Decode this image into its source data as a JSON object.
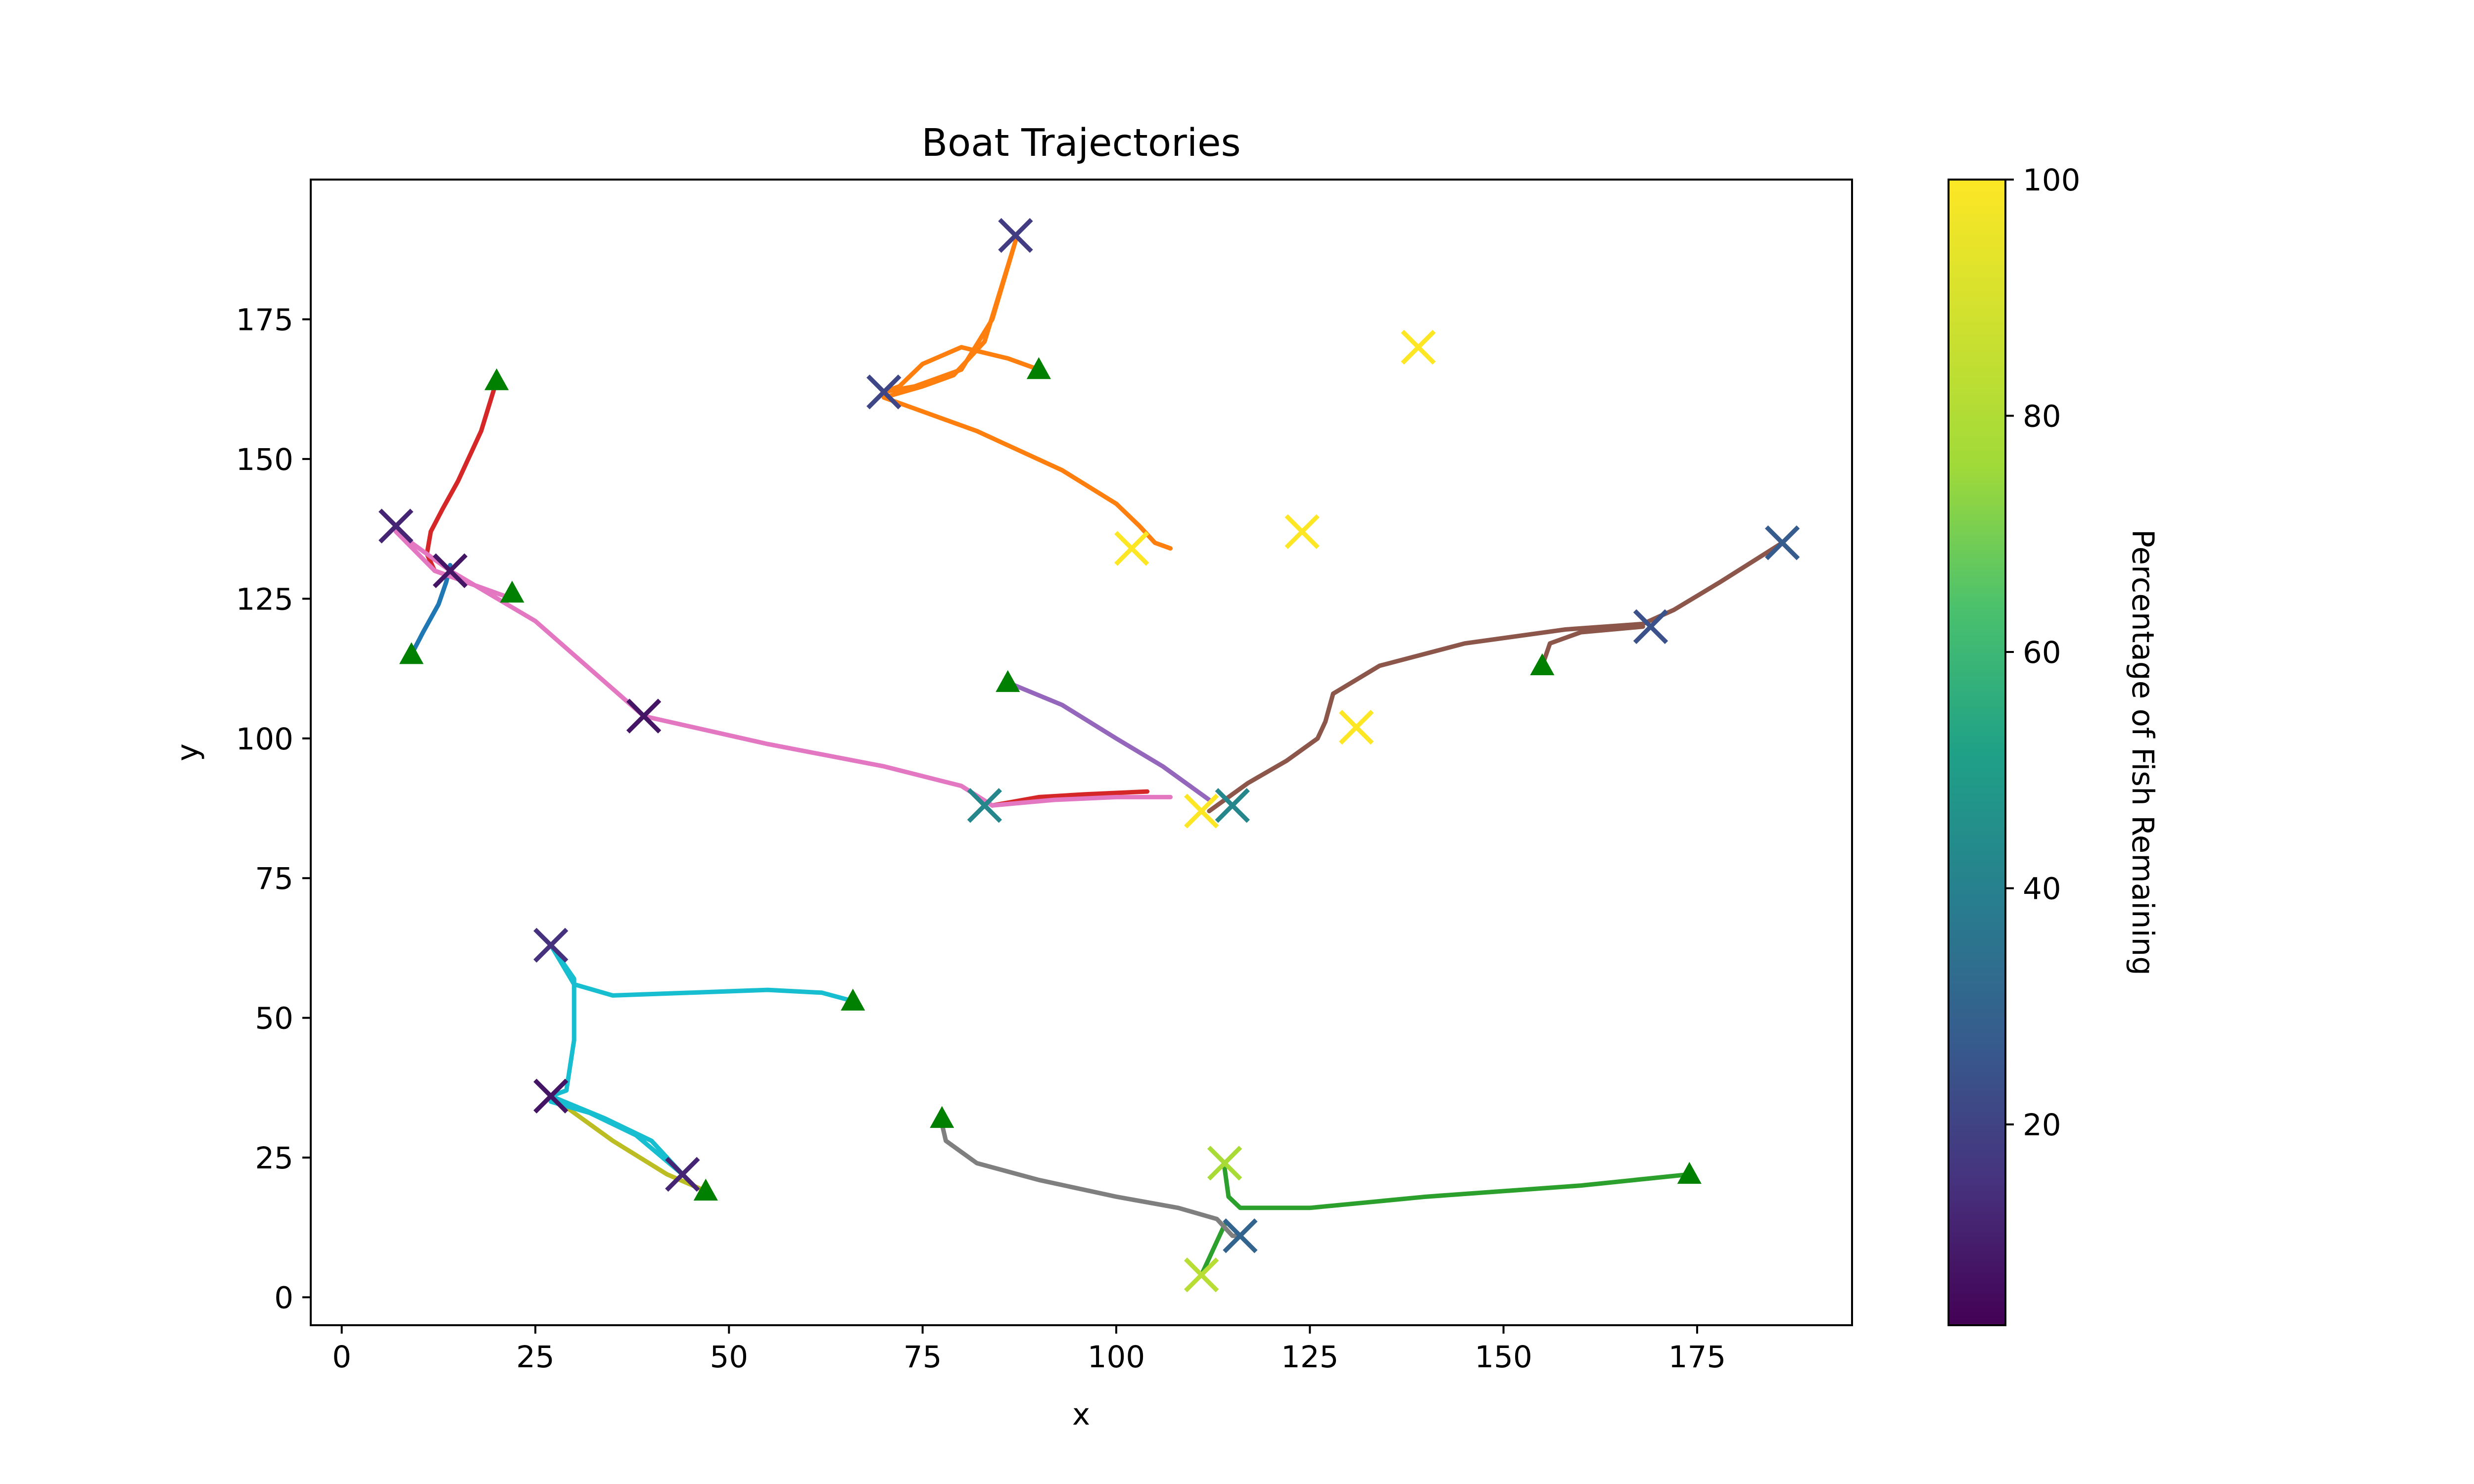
{
  "chart_data": {
    "type": "line",
    "title": "Boat Trajectories",
    "xlabel": "x",
    "ylabel": "y",
    "xlim": [
      -4,
      195
    ],
    "ylim": [
      -5,
      200
    ],
    "xticks": [
      0,
      25,
      50,
      75,
      100,
      125,
      150,
      175
    ],
    "yticks": [
      0,
      25,
      50,
      75,
      100,
      125,
      150,
      175
    ],
    "grid": false,
    "colorbar": {
      "label": "Percentage of Fish Remaining",
      "colormap": "viridis",
      "range": [
        3,
        100
      ],
      "ticks": [
        20,
        40,
        60,
        80,
        100
      ]
    },
    "series": [
      {
        "color": "#1f77b4",
        "points": [
          [
            9,
            115
          ],
          [
            10.5,
            119
          ],
          [
            12.5,
            124
          ],
          [
            13.5,
            128
          ],
          [
            14,
            131
          ]
        ]
      },
      {
        "color": "#ff7f0e",
        "points": [
          [
            90,
            166
          ],
          [
            86,
            168
          ],
          [
            80,
            170
          ],
          [
            75,
            167
          ],
          [
            72,
            163
          ],
          [
            70,
            162
          ],
          [
            74,
            163
          ],
          [
            80,
            166
          ],
          [
            84,
            175
          ],
          [
            87,
            189
          ],
          [
            83,
            171
          ],
          [
            79,
            165
          ],
          [
            75,
            163
          ],
          [
            70,
            161
          ],
          [
            74,
            159
          ],
          [
            82,
            155
          ],
          [
            93,
            148
          ],
          [
            100,
            142
          ],
          [
            103,
            138
          ],
          [
            105,
            135
          ],
          [
            107,
            134
          ]
        ]
      },
      {
        "color": "#2ca02c",
        "points": [
          [
            174,
            22
          ],
          [
            160,
            20
          ],
          [
            140,
            18
          ],
          [
            125,
            16
          ],
          [
            116,
            16
          ],
          [
            114.5,
            18
          ],
          [
            114,
            23
          ]
        ]
      },
      {
        "color": "#2ca02c",
        "points": [
          [
            114,
            13
          ],
          [
            113,
            10
          ],
          [
            112,
            7
          ],
          [
            111,
            4
          ]
        ]
      },
      {
        "color": "#d62728",
        "points": [
          [
            20,
            164
          ],
          [
            18,
            155
          ],
          [
            15,
            146
          ],
          [
            13,
            141
          ],
          [
            11.5,
            137
          ],
          [
            11,
            133
          ],
          [
            12,
            130
          ],
          [
            14,
            129
          ]
        ]
      },
      {
        "color": "#d62728",
        "points": [
          [
            84,
            88
          ],
          [
            90,
            89.5
          ],
          [
            96,
            90
          ],
          [
            104,
            90.5
          ]
        ]
      },
      {
        "color": "#9467bd",
        "points": [
          [
            86,
            110
          ],
          [
            93,
            106
          ],
          [
            100,
            100
          ],
          [
            106,
            95
          ],
          [
            110,
            91
          ],
          [
            112,
            89
          ]
        ]
      },
      {
        "color": "#8c564b",
        "points": [
          [
            112,
            87
          ],
          [
            117,
            92
          ],
          [
            122,
            96
          ],
          [
            126,
            100
          ],
          [
            127,
            103
          ],
          [
            128,
            108
          ],
          [
            134,
            113
          ],
          [
            145,
            117
          ],
          [
            158,
            119.5
          ],
          [
            168,
            120.5
          ],
          [
            172,
            123
          ],
          [
            178,
            128
          ],
          [
            186,
            135
          ]
        ]
      },
      {
        "color": "#8c564b",
        "points": [
          [
            155,
            113
          ],
          [
            156,
            117
          ],
          [
            160,
            119
          ],
          [
            168,
            120
          ]
        ]
      },
      {
        "color": "#e377c2",
        "points": [
          [
            22,
            125
          ],
          [
            17,
            127.5
          ],
          [
            12,
            130
          ],
          [
            7,
            137
          ],
          [
            14,
            130
          ],
          [
            25,
            121
          ],
          [
            39,
            104
          ],
          [
            55,
            99
          ],
          [
            70,
            95
          ],
          [
            80,
            91.5
          ],
          [
            84,
            88
          ],
          [
            92,
            89
          ],
          [
            100,
            89.5
          ],
          [
            107,
            89.5
          ]
        ]
      },
      {
        "color": "#7f7f7f",
        "points": [
          [
            77.5,
            31
          ],
          [
            78,
            28
          ],
          [
            80,
            26
          ],
          [
            82,
            24
          ],
          [
            90,
            21
          ],
          [
            100,
            18
          ],
          [
            108,
            16
          ],
          [
            113,
            14
          ],
          [
            115,
            11
          ],
          [
            116,
            11
          ]
        ]
      },
      {
        "color": "#bcbd22",
        "points": [
          [
            47,
            19
          ],
          [
            42,
            22
          ],
          [
            35,
            28
          ],
          [
            29,
            34
          ],
          [
            27,
            36
          ]
        ]
      },
      {
        "color": "#17becf",
        "points": [
          [
            66,
            53
          ],
          [
            62,
            54.5
          ],
          [
            55,
            55
          ],
          [
            45,
            54.5
          ],
          [
            35,
            54
          ],
          [
            30,
            56
          ],
          [
            27,
            63
          ],
          [
            30,
            57
          ],
          [
            30,
            46
          ],
          [
            29,
            37
          ],
          [
            27,
            36
          ],
          [
            34,
            32
          ],
          [
            40,
            28
          ],
          [
            44,
            22
          ],
          [
            38,
            29
          ],
          [
            32,
            33
          ],
          [
            27,
            35
          ]
        ]
      }
    ],
    "start_markers": [
      [
        9,
        115
      ],
      [
        20,
        164
      ],
      [
        22,
        126
      ],
      [
        90,
        166
      ],
      [
        86,
        110
      ],
      [
        155,
        113
      ],
      [
        174,
        22
      ],
      [
        77.5,
        32
      ],
      [
        66,
        53
      ],
      [
        47,
        19
      ]
    ],
    "end_markers": [
      {
        "point": [
          87,
          190
        ],
        "pct": 18
      },
      {
        "point": [
          70,
          162
        ],
        "pct": 21
      },
      {
        "point": [
          7,
          138
        ],
        "pct": 12
      },
      {
        "point": [
          14,
          130
        ],
        "pct": 8
      },
      {
        "point": [
          39,
          104
        ],
        "pct": 8
      },
      {
        "point": [
          83,
          88
        ],
        "pct": 42
      },
      {
        "point": [
          115,
          88
        ],
        "pct": 42
      },
      {
        "point": [
          111,
          87
        ],
        "pct": 100
      },
      {
        "point": [
          102,
          134
        ],
        "pct": 100
      },
      {
        "point": [
          124,
          137
        ],
        "pct": 100
      },
      {
        "point": [
          139,
          170
        ],
        "pct": 100
      },
      {
        "point": [
          131,
          102
        ],
        "pct": 100
      },
      {
        "point": [
          169,
          120
        ],
        "pct": 24
      },
      {
        "point": [
          186,
          135
        ],
        "pct": 27
      },
      {
        "point": [
          27,
          63
        ],
        "pct": 15
      },
      {
        "point": [
          27,
          36
        ],
        "pct": 8
      },
      {
        "point": [
          44,
          22
        ],
        "pct": 12
      },
      {
        "point": [
          114,
          24
        ],
        "pct": 78
      },
      {
        "point": [
          111,
          4
        ],
        "pct": 82
      },
      {
        "point": [
          116,
          11
        ],
        "pct": 30
      }
    ]
  }
}
